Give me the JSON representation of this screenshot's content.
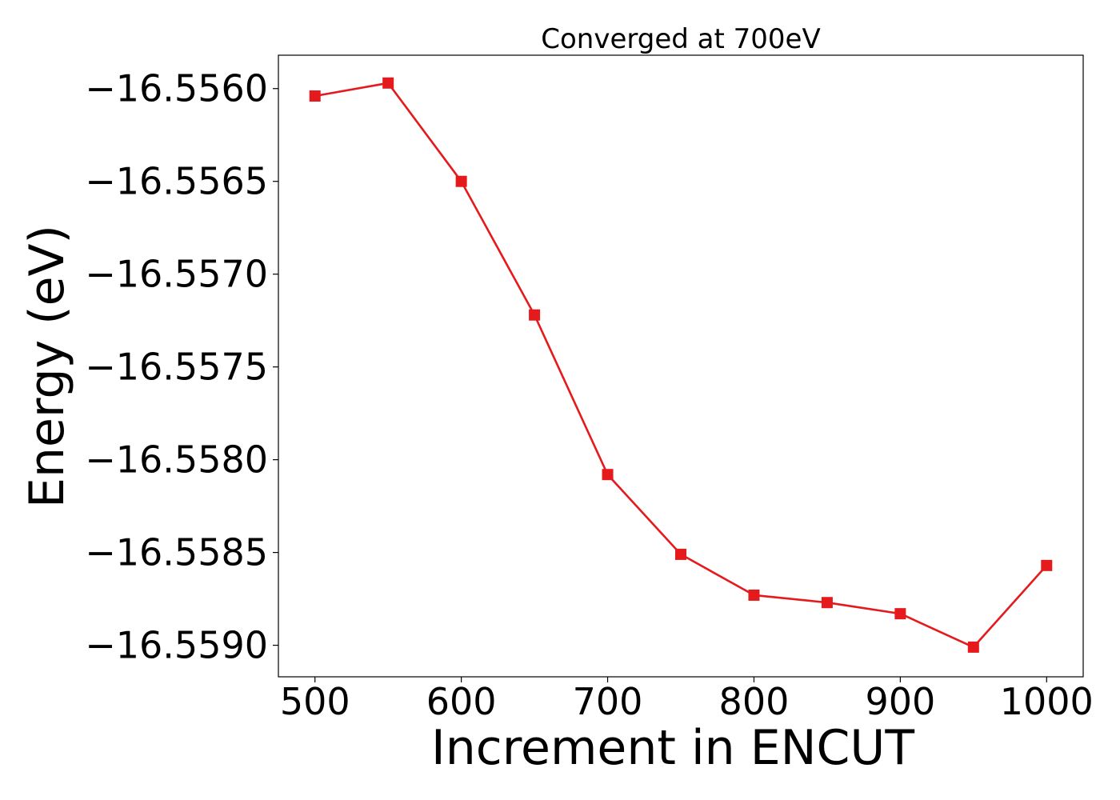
{
  "chart_data": {
    "type": "line",
    "title": "Converged at 700eV",
    "xlabel": "Increment in ENCUT",
    "ylabel": "Energy (eV)",
    "xlim": [
      475,
      1025
    ],
    "ylim": [
      -16.55917,
      -16.55582
    ],
    "x_ticks": [
      500,
      600,
      700,
      800,
      900,
      1000
    ],
    "y_ticks": [
      -16.556,
      -16.5565,
      -16.557,
      -16.5575,
      -16.558,
      -16.5585,
      -16.559
    ],
    "y_tick_labels": [
      "−16.5560",
      "−16.5565",
      "−16.5570",
      "−16.5575",
      "−16.5580",
      "−16.5585",
      "−16.5590"
    ],
    "grid": false,
    "marker": "square",
    "series": [
      {
        "color": "#e41a1c",
        "x": [
          500,
          550,
          600,
          650,
          700,
          750,
          800,
          850,
          900,
          950,
          1000
        ],
        "y": [
          -16.55604,
          -16.55597,
          -16.5565,
          -16.55722,
          -16.55808,
          -16.55851,
          -16.55873,
          -16.55877,
          -16.55883,
          -16.55901,
          -16.55857
        ]
      }
    ]
  }
}
